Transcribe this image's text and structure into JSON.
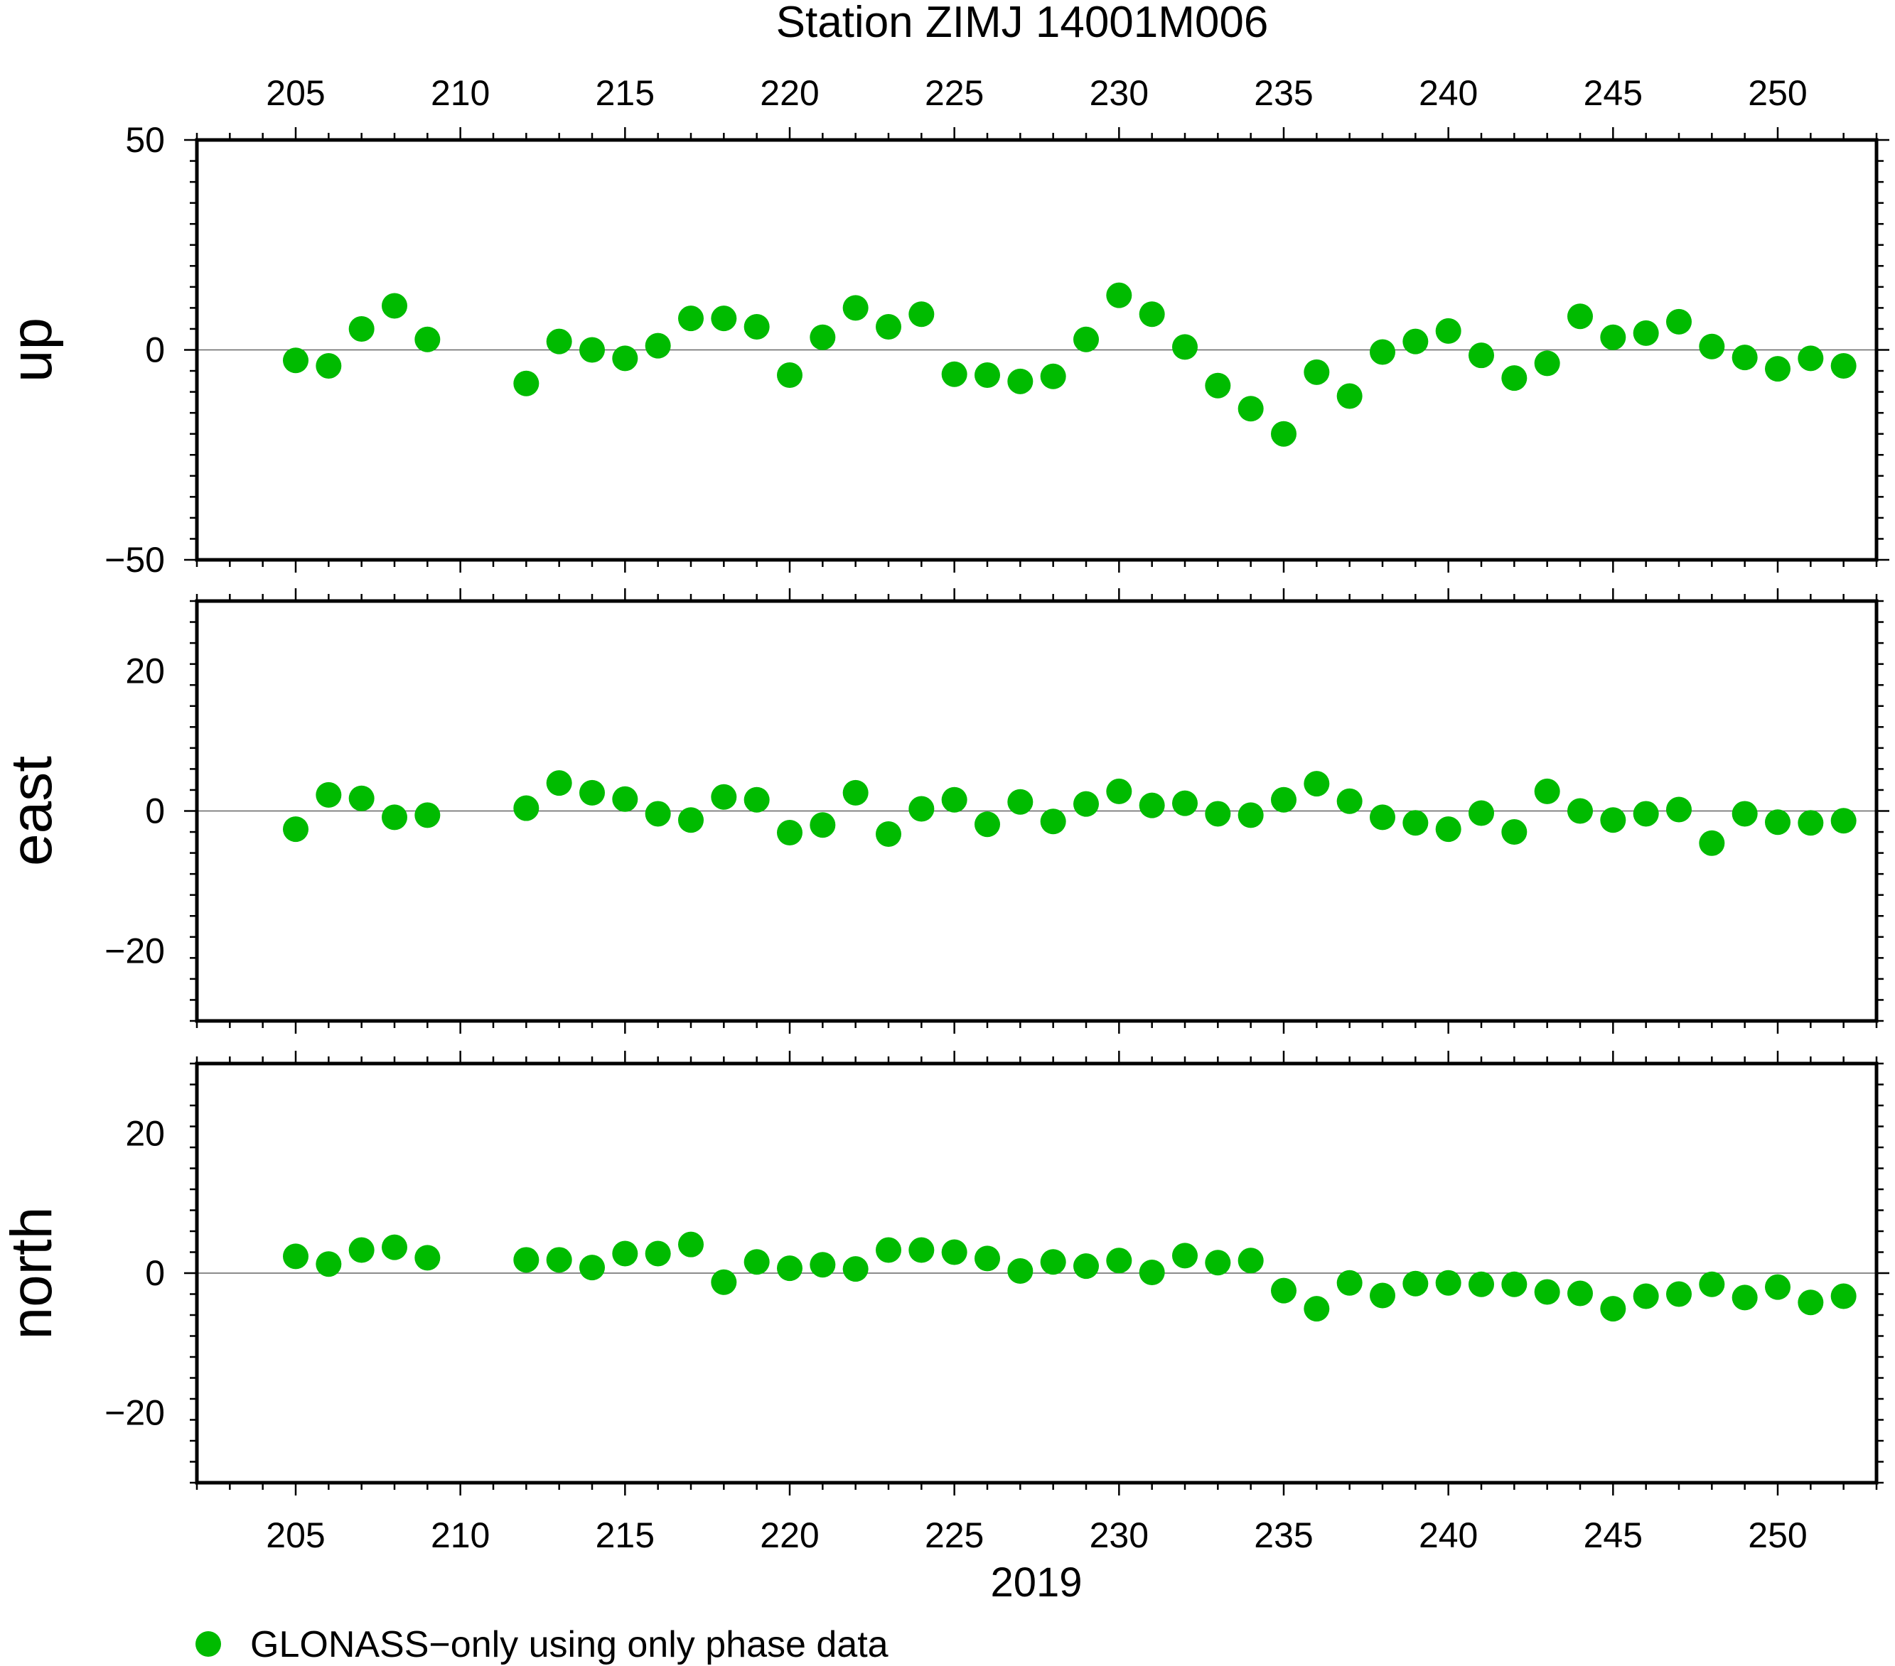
{
  "chart_data": {
    "type": "scatter",
    "title": "Station ZIMJ 14001M006",
    "xlabel": "2019",
    "x_ticks": [
      205,
      210,
      215,
      220,
      225,
      230,
      235,
      240,
      245,
      250
    ],
    "xlim": [
      202,
      253
    ],
    "legend": {
      "label": "GLONASS−only using only phase data",
      "placement": "bottom-left",
      "color": "#00bb00"
    },
    "series_color": "#00bb00",
    "panels": [
      {
        "name": "up",
        "ylim": [
          -50,
          50
        ],
        "y_ticks": [
          50,
          0,
          -50
        ],
        "y_tick_labels": [
          "50",
          "0",
          "−50"
        ],
        "points": [
          [
            205,
            -2.5
          ],
          [
            206,
            -3.8
          ],
          [
            207,
            5.0
          ],
          [
            208,
            10.5
          ],
          [
            209,
            2.5
          ],
          [
            212,
            -8.0
          ],
          [
            213,
            2.0
          ],
          [
            214,
            0.0
          ],
          [
            215,
            -2.0
          ],
          [
            216,
            1.0
          ],
          [
            217,
            7.5
          ],
          [
            218,
            7.5
          ],
          [
            219,
            5.5
          ],
          [
            220,
            -6.0
          ],
          [
            221,
            3.0
          ],
          [
            222,
            10.0
          ],
          [
            223,
            5.5
          ],
          [
            224,
            8.5
          ],
          [
            225,
            -5.8
          ],
          [
            226,
            -6.0
          ],
          [
            227,
            -7.5
          ],
          [
            228,
            -6.3
          ],
          [
            229,
            2.5
          ],
          [
            230,
            13.0
          ],
          [
            231,
            8.5
          ],
          [
            232,
            0.7
          ],
          [
            233,
            -8.5
          ],
          [
            234,
            -14.0
          ],
          [
            235,
            -20.0
          ],
          [
            236,
            -5.3
          ],
          [
            237,
            -11.0
          ],
          [
            238,
            -0.5
          ],
          [
            239,
            2.0
          ],
          [
            240,
            4.5
          ],
          [
            241,
            -1.3
          ],
          [
            242,
            -6.7
          ],
          [
            243,
            -3.2
          ],
          [
            244,
            8.0
          ],
          [
            245,
            3.0
          ],
          [
            246,
            4.0
          ],
          [
            247,
            6.7
          ],
          [
            248,
            0.8
          ],
          [
            249,
            -1.8
          ],
          [
            250,
            -4.5
          ],
          [
            251,
            -2.0
          ],
          [
            252,
            -3.8
          ]
        ]
      },
      {
        "name": "east",
        "ylim": [
          -30,
          30
        ],
        "y_ticks": [
          20,
          0,
          -20
        ],
        "y_tick_labels": [
          "20",
          "0",
          "−20"
        ],
        "points": [
          [
            205,
            -2.6
          ],
          [
            206,
            2.3
          ],
          [
            207,
            1.8
          ],
          [
            208,
            -0.9
          ],
          [
            209,
            -0.6
          ],
          [
            212,
            0.4
          ],
          [
            213,
            4.0
          ],
          [
            214,
            2.6
          ],
          [
            215,
            1.7
          ],
          [
            216,
            -0.4
          ],
          [
            217,
            -1.3
          ],
          [
            218,
            2.0
          ],
          [
            219,
            1.6
          ],
          [
            220,
            -3.1
          ],
          [
            221,
            -2.0
          ],
          [
            222,
            2.6
          ],
          [
            223,
            -3.3
          ],
          [
            224,
            0.3
          ],
          [
            225,
            1.6
          ],
          [
            226,
            -1.9
          ],
          [
            227,
            1.3
          ],
          [
            228,
            -1.5
          ],
          [
            229,
            1.0
          ],
          [
            230,
            2.8
          ],
          [
            231,
            0.8
          ],
          [
            232,
            1.1
          ],
          [
            233,
            -0.4
          ],
          [
            234,
            -0.6
          ],
          [
            235,
            1.6
          ],
          [
            236,
            3.9
          ],
          [
            237,
            1.4
          ],
          [
            238,
            -0.9
          ],
          [
            239,
            -1.7
          ],
          [
            240,
            -2.6
          ],
          [
            241,
            -0.3
          ],
          [
            242,
            -3.0
          ],
          [
            243,
            2.8
          ],
          [
            244,
            0.0
          ],
          [
            245,
            -1.3
          ],
          [
            246,
            -0.4
          ],
          [
            247,
            0.2
          ],
          [
            248,
            -4.6
          ],
          [
            249,
            -0.4
          ],
          [
            250,
            -1.6
          ],
          [
            251,
            -1.7
          ],
          [
            252,
            -1.4
          ]
        ]
      },
      {
        "name": "north",
        "ylim": [
          -30,
          30
        ],
        "y_ticks": [
          20,
          0,
          -20
        ],
        "y_tick_labels": [
          "20",
          "0",
          "−20"
        ],
        "points": [
          [
            205,
            2.4
          ],
          [
            206,
            1.3
          ],
          [
            207,
            3.3
          ],
          [
            208,
            3.7
          ],
          [
            209,
            2.2
          ],
          [
            212,
            1.9
          ],
          [
            213,
            1.9
          ],
          [
            214,
            0.8
          ],
          [
            215,
            2.8
          ],
          [
            216,
            2.8
          ],
          [
            217,
            4.1
          ],
          [
            218,
            -1.3
          ],
          [
            219,
            1.6
          ],
          [
            220,
            0.7
          ],
          [
            221,
            1.2
          ],
          [
            222,
            0.6
          ],
          [
            223,
            3.3
          ],
          [
            224,
            3.3
          ],
          [
            225,
            3.0
          ],
          [
            226,
            2.1
          ],
          [
            227,
            0.3
          ],
          [
            228,
            1.6
          ],
          [
            229,
            1.0
          ],
          [
            230,
            1.8
          ],
          [
            231,
            0.1
          ],
          [
            232,
            2.5
          ],
          [
            233,
            1.5
          ],
          [
            234,
            1.8
          ],
          [
            235,
            -2.5
          ],
          [
            236,
            -5.1
          ],
          [
            237,
            -1.4
          ],
          [
            238,
            -3.2
          ],
          [
            239,
            -1.5
          ],
          [
            240,
            -1.4
          ],
          [
            241,
            -1.6
          ],
          [
            242,
            -1.6
          ],
          [
            243,
            -2.7
          ],
          [
            244,
            -2.9
          ],
          [
            245,
            -5.1
          ],
          [
            246,
            -3.3
          ],
          [
            247,
            -3.0
          ],
          [
            248,
            -1.6
          ],
          [
            249,
            -3.5
          ],
          [
            250,
            -2.0
          ],
          [
            251,
            -4.2
          ],
          [
            252,
            -3.3
          ]
        ]
      }
    ]
  }
}
